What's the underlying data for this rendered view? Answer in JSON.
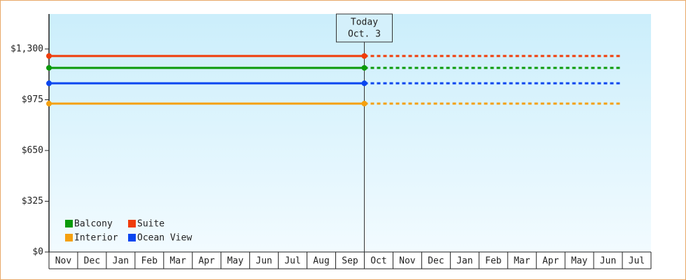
{
  "chart_data": {
    "type": "line",
    "categories": [
      "Nov",
      "Dec",
      "Jan",
      "Feb",
      "Mar",
      "Apr",
      "May",
      "Jun",
      "Jul",
      "Aug",
      "Sep",
      "Oct",
      "Nov",
      "Dec",
      "Jan",
      "Feb",
      "Mar",
      "Apr",
      "May",
      "Jun",
      "Jul"
    ],
    "ylim": [
      0,
      1524
    ],
    "yticks": [
      {
        "value": 0,
        "label": "$0"
      },
      {
        "value": 325,
        "label": "$325"
      },
      {
        "value": 650,
        "label": "$650"
      },
      {
        "value": 975,
        "label": "$975"
      },
      {
        "value": 1300,
        "label": "$1,300"
      }
    ],
    "today": {
      "label": "Today",
      "date": "Oct. 3",
      "index": 11
    },
    "legend": "bottom-left",
    "series": [
      {
        "name": "Balcony",
        "color": "#0a9a0a",
        "values": [
          1179,
          1179,
          1179,
          1179,
          1179,
          1179,
          1179,
          1179,
          1179,
          1179,
          1179,
          1179,
          1179,
          1179,
          1179,
          1179,
          1179,
          1179,
          1179,
          1179,
          1179
        ]
      },
      {
        "name": "Suite",
        "color": "#f03c0a",
        "values": [
          1255,
          1255,
          1255,
          1255,
          1255,
          1255,
          1255,
          1255,
          1255,
          1255,
          1255,
          1255,
          1255,
          1255,
          1255,
          1255,
          1255,
          1255,
          1255,
          1255,
          1255
        ]
      },
      {
        "name": "Interior",
        "color": "#f5a00f",
        "values": [
          950,
          950,
          950,
          950,
          950,
          950,
          950,
          950,
          950,
          950,
          950,
          950,
          950,
          950,
          950,
          950,
          950,
          950,
          950,
          950,
          950
        ]
      },
      {
        "name": "Ocean View",
        "color": "#0a46f0",
        "values": [
          1080,
          1080,
          1080,
          1080,
          1080,
          1080,
          1080,
          1080,
          1080,
          1080,
          1080,
          1080,
          1080,
          1080,
          1080,
          1080,
          1080,
          1080,
          1080,
          1080,
          1080
        ]
      }
    ]
  }
}
